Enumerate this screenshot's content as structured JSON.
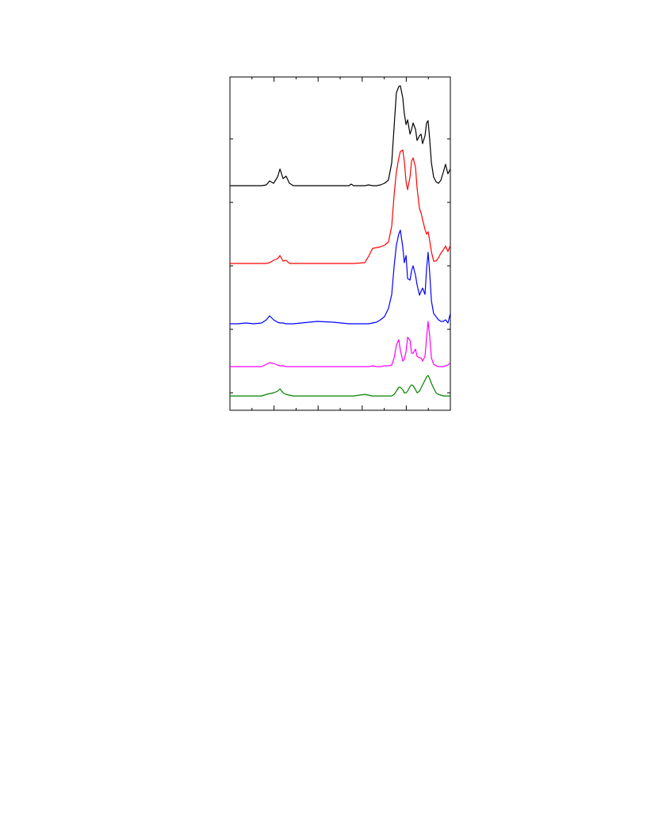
{
  "chart_data": {
    "type": "line",
    "x": [
      0,
      0.36,
      0.72,
      1.08,
      1.44,
      1.65,
      1.8,
      1.98,
      2.16,
      2.27,
      2.41,
      2.55,
      2.7,
      2.88,
      3.24,
      3.96,
      4.68,
      5.4,
      5.5,
      5.61,
      6.12,
      6.29,
      6.47,
      6.65,
      6.83,
      7.01,
      7.19,
      7.34,
      7.45,
      7.55,
      7.66,
      7.73,
      7.84,
      7.91,
      7.99,
      8.06,
      8.17,
      8.24,
      8.31,
      8.42,
      8.49,
      8.6,
      8.67,
      8.74,
      8.85,
      8.92,
      8.99,
      9.06,
      9.14,
      9.24,
      9.35,
      9.46,
      9.57,
      9.68,
      9.78,
      9.89,
      10
    ],
    "series": [
      {
        "color": "#000000",
        "values": [
          13.05,
          13.05,
          13.05,
          13.05,
          13.05,
          13.1,
          13.35,
          13.2,
          13.6,
          14.1,
          13.5,
          13.65,
          13.2,
          13.05,
          13.05,
          13.05,
          13.05,
          13.05,
          13.15,
          13.05,
          13.05,
          13.1,
          13.05,
          13.05,
          13.1,
          13.2,
          13.4,
          14.5,
          16.8,
          18.9,
          19.3,
          19.35,
          18.6,
          17.6,
          16.9,
          17.2,
          16.3,
          16.6,
          17.0,
          16.6,
          15.9,
          16.2,
          16.3,
          15.7,
          16.2,
          17.0,
          17.15,
          16.0,
          14.5,
          13.6,
          13.3,
          13.2,
          13.4,
          13.9,
          14.4,
          13.8,
          14.1
        ]
      },
      {
        "color": "#ff0000",
        "values": [
          8.15,
          8.15,
          8.15,
          8.15,
          8.15,
          8.15,
          8.2,
          8.35,
          8.45,
          8.65,
          8.3,
          8.35,
          8.15,
          8.15,
          8.15,
          8.15,
          8.15,
          8.15,
          8.15,
          8.15,
          8.2,
          8.6,
          9.1,
          9.15,
          9.2,
          9.3,
          9.5,
          10.5,
          12.5,
          13.9,
          14.8,
          15.2,
          15.3,
          14.6,
          13.3,
          12.8,
          13.6,
          14.6,
          14.8,
          14.2,
          12.9,
          11.6,
          11.35,
          10.9,
          10.3,
          10.0,
          10.15,
          9.6,
          8.9,
          8.3,
          8.3,
          8.5,
          8.8,
          9.0,
          9.25,
          8.9,
          9.3
        ]
      },
      {
        "color": "#0000ff",
        "values": [
          4.35,
          4.35,
          4.4,
          4.35,
          4.4,
          4.6,
          4.85,
          4.6,
          4.45,
          4.4,
          4.4,
          4.35,
          4.35,
          4.35,
          4.4,
          4.5,
          4.45,
          4.35,
          4.35,
          4.35,
          4.35,
          4.35,
          4.4,
          4.45,
          4.6,
          4.8,
          5.3,
          6.2,
          8.0,
          9.3,
          10.0,
          10.25,
          9.2,
          8.2,
          8.65,
          7.2,
          7.1,
          7.7,
          8.0,
          7.4,
          6.8,
          6.15,
          6.4,
          6.6,
          6.2,
          7.8,
          8.85,
          7.6,
          5.8,
          5.0,
          4.8,
          4.6,
          4.5,
          4.5,
          4.6,
          4.4,
          5.0
        ]
      },
      {
        "color": "#ff00ff",
        "values": [
          1.65,
          1.65,
          1.65,
          1.65,
          1.65,
          1.8,
          1.9,
          1.85,
          1.75,
          1.7,
          1.7,
          1.65,
          1.65,
          1.65,
          1.65,
          1.65,
          1.65,
          1.65,
          1.65,
          1.65,
          1.65,
          1.65,
          1.7,
          1.65,
          1.65,
          1.7,
          1.7,
          1.75,
          2.2,
          3.0,
          3.35,
          2.7,
          2.0,
          2.1,
          2.6,
          3.5,
          3.3,
          2.5,
          2.5,
          2.75,
          2.3,
          2.2,
          2.2,
          2.0,
          2.3,
          3.5,
          4.5,
          3.6,
          2.2,
          1.8,
          1.7,
          1.65,
          1.65,
          1.65,
          1.7,
          1.75,
          1.9
        ]
      },
      {
        "color": "#008000",
        "values": [
          -0.2,
          -0.2,
          -0.2,
          -0.2,
          -0.2,
          -0.1,
          -0.05,
          0.0,
          0.1,
          0.25,
          0.0,
          -0.1,
          -0.15,
          -0.2,
          -0.2,
          -0.2,
          -0.2,
          -0.2,
          -0.2,
          -0.2,
          -0.1,
          -0.15,
          -0.2,
          -0.2,
          -0.2,
          -0.2,
          -0.2,
          -0.2,
          -0.1,
          0.1,
          0.35,
          0.35,
          0.2,
          0.0,
          0.0,
          0.1,
          0.4,
          0.5,
          0.45,
          0.2,
          0.0,
          0.1,
          0.3,
          0.5,
          0.8,
          1.0,
          1.1,
          0.9,
          0.6,
          0.3,
          0.0,
          -0.1,
          -0.15,
          -0.2,
          -0.2,
          -0.2,
          -0.2
        ]
      }
    ],
    "xlim": [
      0,
      10
    ],
    "xticks": [
      0,
      2,
      4,
      6,
      8,
      10
    ],
    "xminorticks": [
      1,
      3,
      5,
      7,
      9
    ],
    "ylim": [
      -1.1,
      19.9
    ],
    "yticks": [
      0,
      4,
      8,
      12,
      16
    ]
  }
}
